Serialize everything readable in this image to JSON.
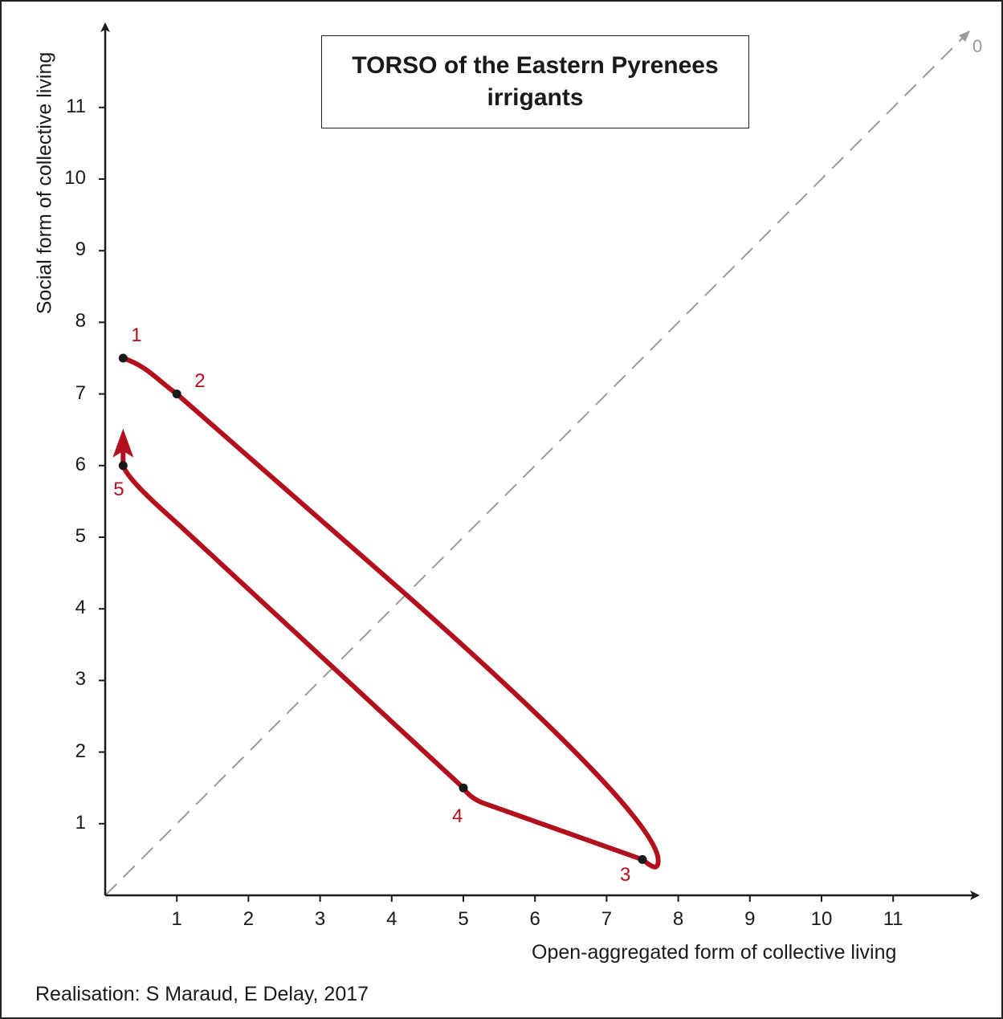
{
  "chart_data": {
    "type": "line",
    "title_line1": "TORSO of the Eastern Pyrenees",
    "title_line2": "irrigants",
    "xlabel": "Open-aggregated form of collective living",
    "ylabel": "Social form of collective living",
    "xlim": [
      0,
      12
    ],
    "ylim": [
      0,
      12
    ],
    "x_ticks": [
      "1",
      "2",
      "3",
      "4",
      "5",
      "6",
      "7",
      "8",
      "9",
      "10",
      "11"
    ],
    "y_ticks": [
      "1",
      "2",
      "3",
      "4",
      "5",
      "6",
      "7",
      "8",
      "9",
      "10",
      "11"
    ],
    "diagonal_label": "0",
    "grid": false,
    "series": [
      {
        "points": [
          {
            "label": "1",
            "x": 0.25,
            "y": 7.5
          },
          {
            "label": "2",
            "x": 1.0,
            "y": 7.0
          },
          {
            "label": "3",
            "x": 7.5,
            "y": 0.5
          },
          {
            "label": "4",
            "x": 5.0,
            "y": 1.5
          },
          {
            "label": "5",
            "x": 0.25,
            "y": 6.0
          }
        ]
      }
    ],
    "colors": {
      "trajectory": "#b3101e",
      "points": "#1a1a1a",
      "diagonal": "#9a9a9a",
      "axes": "#1a1a1a"
    }
  },
  "credit": "Realisation: S Maraud, E Delay, 2017"
}
